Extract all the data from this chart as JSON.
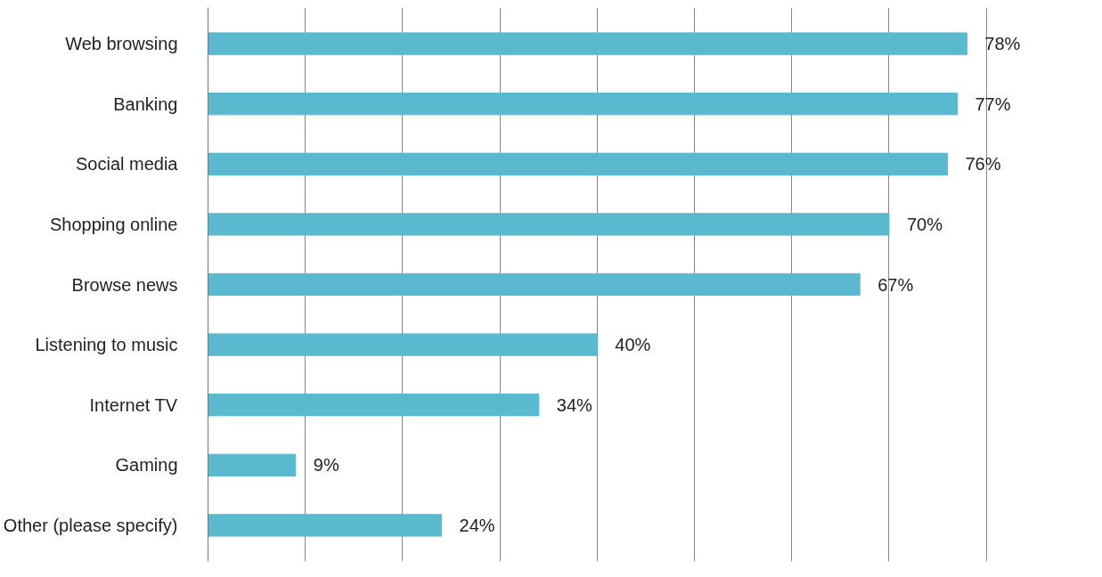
{
  "chart_data": {
    "type": "bar",
    "orientation": "horizontal",
    "categories": [
      "Web browsing",
      "Banking",
      "Social media",
      "Shopping online",
      "Browse news",
      "Listening to music",
      "Internet TV",
      "Gaming",
      "Other (please specify)"
    ],
    "values": [
      78,
      77,
      76,
      70,
      67,
      40,
      34,
      9,
      24
    ],
    "value_labels": [
      "78%",
      "77%",
      "76%",
      "70%",
      "67%",
      "40%",
      "34%",
      "9%",
      "24%"
    ],
    "color": "#5ab8cf",
    "grid": "x",
    "tick_labels": "y"
  }
}
